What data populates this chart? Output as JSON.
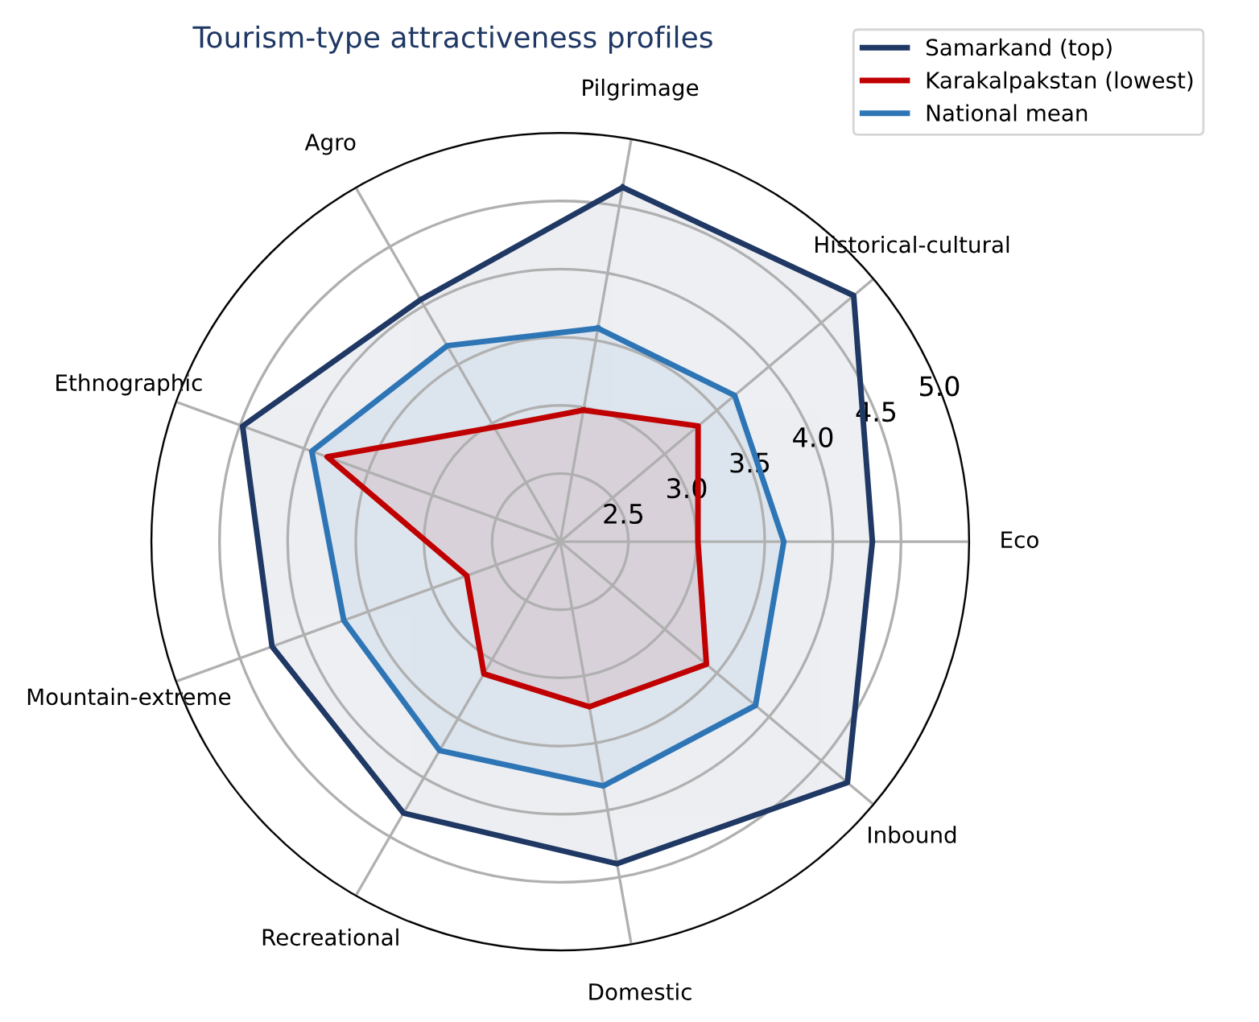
{
  "chart_data": {
    "type": "radar",
    "title": "Tourism-type attractiveness profiles",
    "categories": [
      "Pilgrimage",
      "Historical-cultural",
      "Eco",
      "Inbound",
      "Domestic",
      "Recreational",
      "Mountain-extreme",
      "Ethnographic",
      "Agro"
    ],
    "series": [
      {
        "name": "Samarkand (top)",
        "color": "#1f3864",
        "values": [
          4.64,
          4.81,
          4.29,
          4.75,
          4.4,
          4.3,
          4.25,
          4.48,
          4.05
        ]
      },
      {
        "name": "Karakalpakstan (lowest)",
        "color": "#c00000",
        "values": [
          2.98,
          3.32,
          3.01,
          3.4,
          3.23,
          3.12,
          2.73,
          3.82,
          2.97
        ]
      },
      {
        "name": "National mean",
        "color": "#2e75b6",
        "values": [
          3.59,
          3.67,
          3.64,
          3.87,
          3.82,
          3.77,
          3.69,
          3.94,
          3.66
        ]
      }
    ],
    "ylim": [
      2.0,
      5.0
    ],
    "yticks": [
      2.5,
      {
        "value": 3,
        "label": "3.0"
      },
      3.5,
      {
        "value": 4,
        "label": "4.0"
      },
      4.5,
      {
        "value": 5,
        "label": "5.0"
      }
    ],
    "grid": true,
    "legend": "top right"
  }
}
